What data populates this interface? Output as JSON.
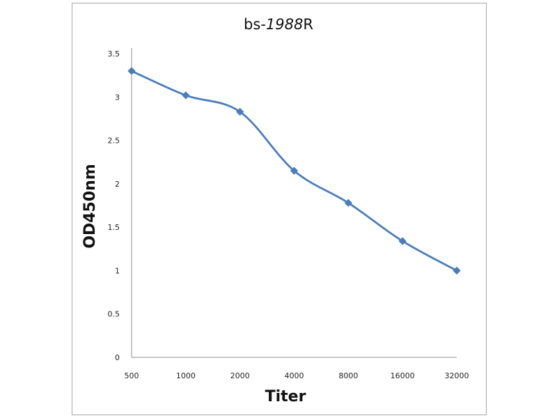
{
  "chart_data": {
    "type": "line",
    "title": {
      "prefix": "bs-",
      "number": "1988",
      "suffix": "R"
    },
    "xlabel": "Titer",
    "ylabel": "OD450nm",
    "categories": [
      "500",
      "1000",
      "2000",
      "4000",
      "8000",
      "16000",
      "32000"
    ],
    "series": [
      {
        "name": "bs-1988R",
        "values": [
          3.3,
          3.02,
          2.83,
          2.15,
          1.78,
          1.34,
          1.0
        ],
        "color": "#4a7ebb"
      }
    ],
    "ylim": [
      0,
      3.5
    ],
    "yticks": [
      "0",
      "0.5",
      "1",
      "1.5",
      "2",
      "2.5",
      "3",
      "3.5"
    ],
    "grid": false,
    "legend": "none"
  }
}
